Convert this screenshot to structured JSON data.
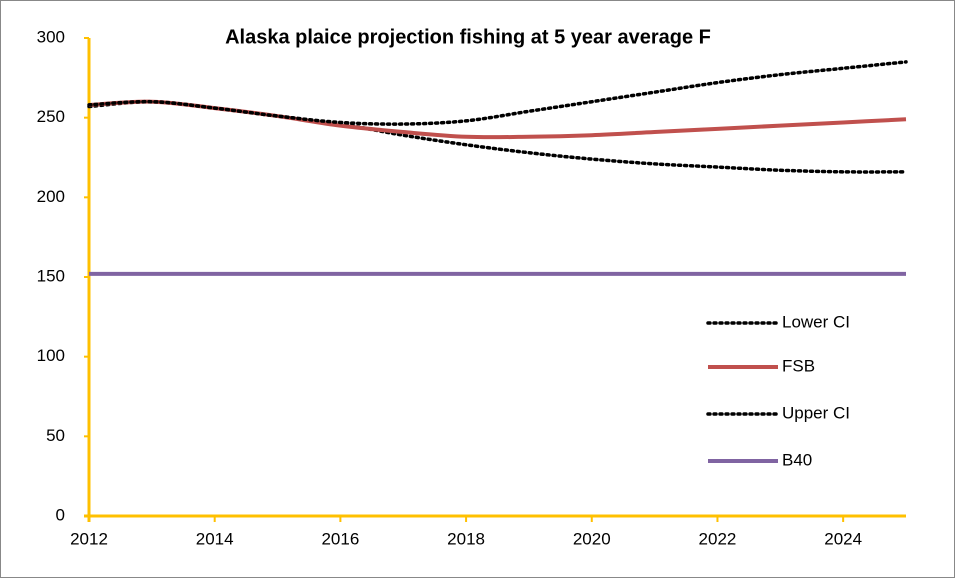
{
  "chart_data": {
    "type": "line",
    "title": "Alaska plaice projection fishing at 5 year average F",
    "x": [
      2012,
      2013,
      2014,
      2015,
      2016,
      2017,
      2018,
      2019,
      2020,
      2021,
      2022,
      2023,
      2024,
      2025
    ],
    "series": [
      {
        "name": "Lower CI",
        "color": "#000000",
        "style": "dotted",
        "values": [
          257,
          260,
          256,
          251,
          246,
          239,
          233,
          228,
          224,
          221,
          219,
          217,
          216,
          216
        ]
      },
      {
        "name": "FSB",
        "color": "#C0504D",
        "style": "solid",
        "values": [
          258,
          260,
          256,
          251,
          245,
          241,
          238,
          238,
          239,
          241,
          243,
          245,
          247,
          249
        ]
      },
      {
        "name": "Upper CI",
        "color": "#000000",
        "style": "dotted",
        "values": [
          258,
          260,
          256,
          251,
          247,
          246,
          248,
          254,
          260,
          266,
          272,
          277,
          281,
          285
        ]
      },
      {
        "name": "B40",
        "color": "#8064A2",
        "style": "solid",
        "values": [
          152,
          152,
          152,
          152,
          152,
          152,
          152,
          152,
          152,
          152,
          152,
          152,
          152,
          152
        ]
      }
    ],
    "xlim": [
      2012,
      2025
    ],
    "xticks": [
      2012,
      2014,
      2016,
      2018,
      2020,
      2022,
      2024
    ],
    "ylim": [
      0,
      300
    ],
    "yticks": [
      0,
      50,
      100,
      150,
      200,
      250,
      300
    ],
    "axis_color": "#FFC000",
    "grid": false,
    "legend": "right"
  }
}
